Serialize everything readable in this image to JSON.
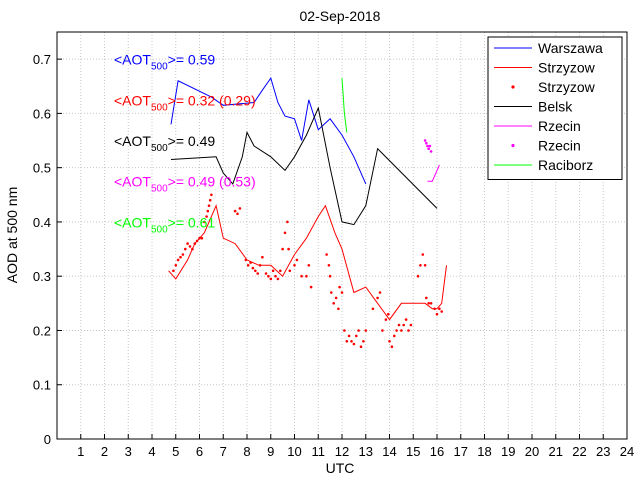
{
  "chart_data": {
    "type": "line",
    "title": "02-Sep-2018",
    "xlabel": "UTC",
    "ylabel": "AOD at 500 nm",
    "xlim": [
      0,
      24
    ],
    "ylim": [
      0,
      0.75
    ],
    "xticks": [
      1,
      2,
      3,
      4,
      5,
      6,
      7,
      8,
      9,
      10,
      11,
      12,
      13,
      14,
      15,
      16,
      17,
      18,
      19,
      20,
      21,
      22,
      23,
      24
    ],
    "yticks": [
      0,
      0.1,
      0.2,
      0.3,
      0.4,
      0.5,
      0.6,
      0.7
    ],
    "grid": true,
    "legend_position": "top-right",
    "annotations": [
      {
        "prefix": "<AOT",
        "sub": "500",
        "suffix": ">= 0.59",
        "color": "#0000ff",
        "x": 2.4,
        "y": 0.69
      },
      {
        "prefix": "<AOT",
        "sub": "500",
        "suffix": ">= 0.32 (0.29)",
        "color": "#ff0000",
        "x": 2.4,
        "y": 0.615
      },
      {
        "prefix": "<AOT",
        "sub": "500",
        "suffix": ">= 0.49",
        "color": "#000000",
        "x": 2.4,
        "y": 0.54
      },
      {
        "prefix": "<AOT",
        "sub": "500",
        "suffix": ">= 0.49 (0.53)",
        "color": "#ff00ff",
        "x": 2.4,
        "y": 0.465
      },
      {
        "prefix": "<AOT",
        "sub": "500",
        "suffix": ">= 0.61",
        "color": "#00ff00",
        "x": 2.4,
        "y": 0.39
      }
    ],
    "series": [
      {
        "name": "Warszawa",
        "style": "line",
        "color": "#0000ff",
        "x": [
          4.8,
          5.1,
          6.5,
          7.0,
          8.3,
          8.6,
          9.0,
          9.3,
          9.6,
          10.0,
          10.3,
          10.6,
          11.0,
          11.5,
          12.0,
          12.5,
          13.0
        ],
        "y": [
          0.58,
          0.66,
          0.63,
          0.615,
          0.62,
          0.64,
          0.665,
          0.62,
          0.595,
          0.59,
          0.55,
          0.625,
          0.57,
          0.59,
          0.56,
          0.52,
          0.47
        ]
      },
      {
        "name": "Strzyzow",
        "style": "line",
        "color": "#ff0000",
        "x": [
          4.7,
          5.0,
          5.5,
          5.8,
          6.2,
          6.7,
          7.0,
          7.5,
          8.0,
          8.5,
          9.0,
          9.5,
          10.0,
          10.5,
          11.0,
          11.3,
          11.7,
          12.0,
          12.5,
          13.0,
          13.5,
          14.0,
          14.5,
          15.0,
          15.5,
          15.8,
          16.0,
          16.2,
          16.4
        ],
        "y": [
          0.31,
          0.295,
          0.33,
          0.36,
          0.38,
          0.43,
          0.37,
          0.36,
          0.33,
          0.32,
          0.32,
          0.3,
          0.34,
          0.37,
          0.41,
          0.43,
          0.38,
          0.35,
          0.27,
          0.28,
          0.25,
          0.22,
          0.25,
          0.25,
          0.25,
          0.24,
          0.24,
          0.25,
          0.32
        ]
      },
      {
        "name": "Strzyzow",
        "style": "dots",
        "color": "#ff0000",
        "x": [
          4.9,
          5.0,
          5.1,
          5.2,
          5.3,
          5.4,
          5.5,
          5.6,
          5.7,
          5.8,
          5.9,
          6.0,
          6.1,
          6.2,
          6.3,
          6.35,
          6.4,
          6.45,
          6.5,
          7.5,
          7.6,
          7.7,
          7.95,
          8.05,
          8.15,
          8.25,
          8.35,
          8.45,
          8.55,
          8.65,
          8.8,
          8.9,
          9.0,
          9.1,
          9.2,
          9.3,
          9.4,
          9.5,
          9.6,
          9.7,
          9.75,
          9.8,
          10.0,
          10.1,
          10.3,
          10.5,
          10.6,
          10.7,
          11.35,
          11.45,
          11.5,
          11.55,
          11.65,
          11.75,
          11.85,
          11.9,
          12.0,
          12.1,
          12.2,
          12.3,
          12.4,
          12.5,
          12.6,
          12.7,
          12.8,
          12.9,
          13.0,
          13.3,
          13.5,
          13.6,
          13.7,
          13.85,
          13.95,
          14.0,
          14.1,
          14.2,
          14.3,
          14.4,
          14.5,
          14.6,
          14.7,
          14.8,
          14.9,
          15.2,
          15.3,
          15.4,
          15.5,
          15.55,
          15.65,
          15.75,
          15.9,
          16.0,
          16.1,
          16.2
        ],
        "y": [
          0.31,
          0.32,
          0.33,
          0.335,
          0.34,
          0.35,
          0.36,
          0.355,
          0.35,
          0.36,
          0.365,
          0.37,
          0.37,
          0.4,
          0.41,
          0.42,
          0.43,
          0.44,
          0.45,
          0.42,
          0.415,
          0.425,
          0.33,
          0.32,
          0.325,
          0.315,
          0.31,
          0.305,
          0.32,
          0.335,
          0.305,
          0.3,
          0.295,
          0.31,
          0.3,
          0.295,
          0.31,
          0.35,
          0.38,
          0.4,
          0.35,
          0.31,
          0.32,
          0.33,
          0.3,
          0.3,
          0.32,
          0.28,
          0.34,
          0.32,
          0.3,
          0.27,
          0.25,
          0.26,
          0.24,
          0.28,
          0.27,
          0.2,
          0.18,
          0.19,
          0.18,
          0.175,
          0.19,
          0.2,
          0.17,
          0.18,
          0.2,
          0.24,
          0.26,
          0.27,
          0.2,
          0.22,
          0.23,
          0.18,
          0.17,
          0.19,
          0.2,
          0.21,
          0.2,
          0.21,
          0.22,
          0.2,
          0.21,
          0.3,
          0.32,
          0.34,
          0.32,
          0.26,
          0.25,
          0.25,
          0.24,
          0.23,
          0.24,
          0.235
        ]
      },
      {
        "name": "Belsk",
        "style": "line",
        "color": "#000000",
        "x": [
          4.8,
          6.7,
          7.0,
          7.4,
          7.8,
          8.0,
          8.3,
          9.0,
          9.6,
          10.0,
          10.5,
          11.0,
          11.5,
          12.0,
          12.5,
          13.0,
          13.5,
          16.0
        ],
        "y": [
          0.515,
          0.52,
          0.49,
          0.47,
          0.52,
          0.565,
          0.54,
          0.52,
          0.495,
          0.52,
          0.56,
          0.61,
          0.5,
          0.4,
          0.395,
          0.43,
          0.535,
          0.425
        ]
      },
      {
        "name": "Rzecin",
        "style": "line",
        "color": "#ff00ff",
        "x": [
          15.6,
          15.8,
          16.1
        ],
        "y": [
          0.475,
          0.475,
          0.505
        ]
      },
      {
        "name": "Rzecin",
        "style": "dots",
        "color": "#ff00ff",
        "x": [
          15.5,
          15.55,
          15.6,
          15.65,
          15.7,
          15.75
        ],
        "y": [
          0.55,
          0.545,
          0.54,
          0.535,
          0.54,
          0.53
        ]
      },
      {
        "name": "Raciborz",
        "style": "line",
        "color": "#00ff00",
        "x": [
          12.0,
          12.1,
          12.2
        ],
        "y": [
          0.665,
          0.6,
          0.565
        ]
      }
    ]
  }
}
